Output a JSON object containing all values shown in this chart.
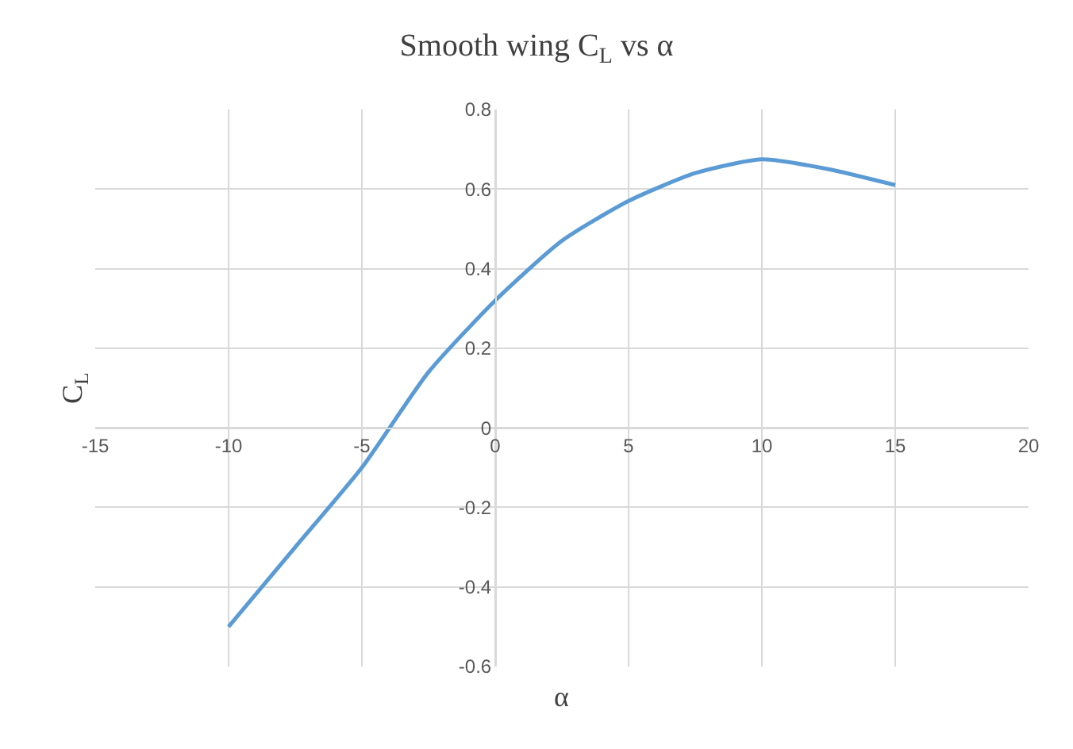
{
  "chart_data": {
    "type": "line",
    "title": "Smooth wing C$_{L}$ vs α",
    "xlabel": "α",
    "ylabel": "C$_{L}$",
    "x": [
      -10,
      -7.5,
      -5,
      -2.5,
      0,
      2.5,
      5,
      7.5,
      10,
      12.5,
      15
    ],
    "series": [
      {
        "color": "#5b9bd5",
        "values": [
          -0.5,
          -0.3,
          -0.1,
          0.14,
          0.32,
          0.47,
          0.57,
          0.64,
          0.675,
          0.65,
          0.61
        ]
      }
    ],
    "xlim": [
      -15,
      20
    ],
    "xticks": [
      -15,
      -10,
      -5,
      0,
      5,
      10,
      15,
      20
    ],
    "ylim": [
      -0.6,
      0.8
    ],
    "yticks": [
      -0.6,
      -0.4,
      -0.2,
      0,
      0.2,
      0.4,
      0.6,
      0.8
    ],
    "grid": true,
    "legend": false,
    "marker": "none",
    "line_style": "solid"
  }
}
